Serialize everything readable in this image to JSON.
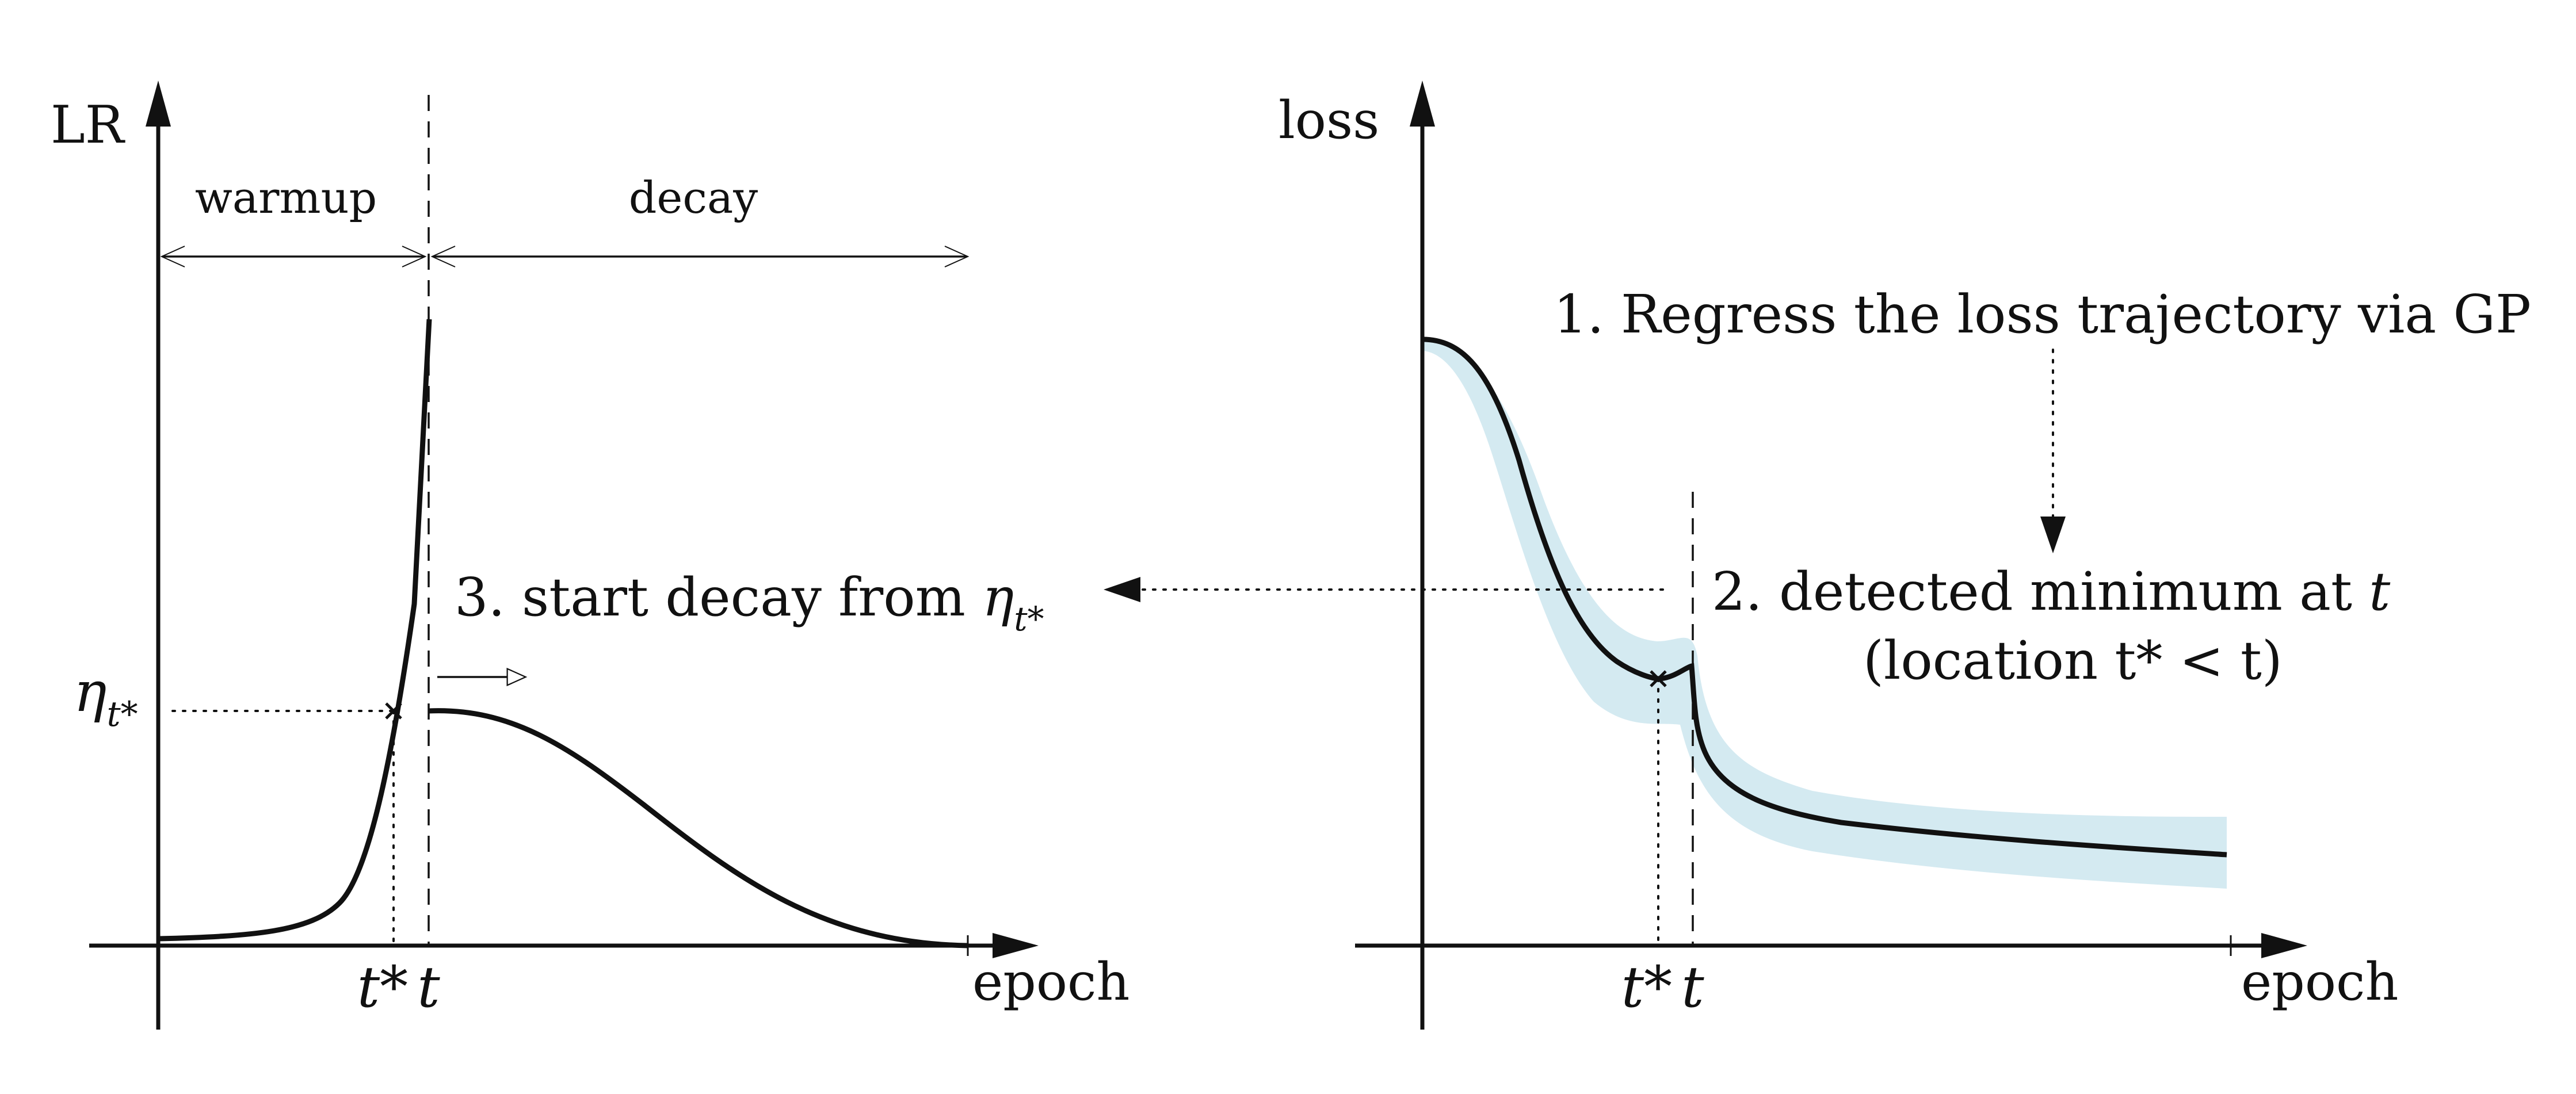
{
  "colors": {
    "ink": "#111111",
    "band": "#d4eaf1"
  },
  "left_panel": {
    "y_axis_label": "LR",
    "x_axis_label": "epoch",
    "phase_warmup": "warmup",
    "phase_decay": "decay",
    "eta_symbol": "η",
    "eta_subscript": "t*",
    "tick_t_star": "t*",
    "tick_t": "t",
    "step3_text": "3. start decay from ",
    "step3_eta": "η",
    "step3_sub": "t*"
  },
  "right_panel": {
    "y_axis_label": "loss",
    "x_axis_label": "epoch",
    "step1_text": "1. Regress the loss trajectory via GP",
    "step2_line1_prefix": "2. detected minimum at ",
    "step2_line1_var": "t",
    "step2_line2": "(location t* < t)",
    "tick_t_star": "t*",
    "tick_t": "t"
  }
}
